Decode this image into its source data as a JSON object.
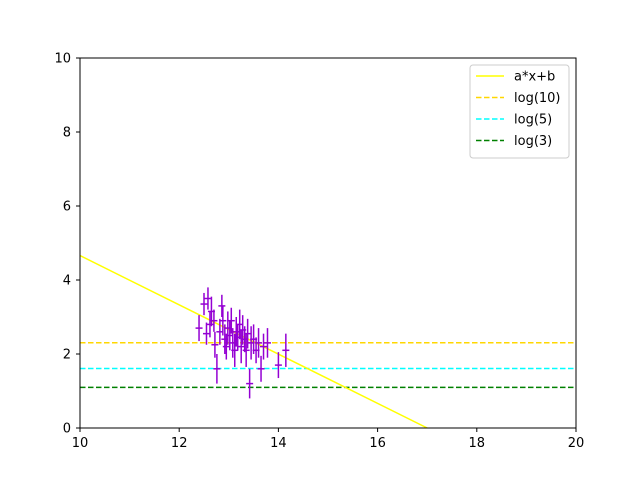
{
  "chart_data": {
    "type": "scatter",
    "title": "",
    "xlabel": "",
    "ylabel": "",
    "xlim": [
      10,
      20
    ],
    "ylim": [
      0,
      10
    ],
    "xticks": [
      "10",
      "12",
      "14",
      "16",
      "18",
      "20"
    ],
    "yticks": [
      "0",
      "2",
      "4",
      "6",
      "8",
      "10"
    ],
    "grid": false,
    "legend_position": "top-right",
    "fit_line": {
      "name": "a*x+b",
      "color": "#ffff00",
      "style": "solid",
      "x": [
        10,
        17
      ],
      "y": [
        4.66,
        0
      ]
    },
    "reference_lines": [
      {
        "name": "log(10)",
        "value": 2.303,
        "color": "#ffd700",
        "style": "dashed"
      },
      {
        "name": "log(5)",
        "value": 1.609,
        "color": "#00ffff",
        "style": "dashed"
      },
      {
        "name": "log(3)",
        "value": 1.099,
        "color": "#008000",
        "style": "dashed"
      }
    ],
    "scatter": {
      "color": "#9400d3",
      "points": [
        {
          "x": 12.4,
          "y": 2.7,
          "err": 0.35
        },
        {
          "x": 12.5,
          "y": 3.35,
          "err": 0.3
        },
        {
          "x": 12.55,
          "y": 2.55,
          "err": 0.3
        },
        {
          "x": 12.58,
          "y": 3.5,
          "err": 0.3
        },
        {
          "x": 12.62,
          "y": 2.8,
          "err": 0.35
        },
        {
          "x": 12.65,
          "y": 3.15,
          "err": 0.4
        },
        {
          "x": 12.7,
          "y": 2.9,
          "err": 0.3
        },
        {
          "x": 12.72,
          "y": 2.25,
          "err": 0.35
        },
        {
          "x": 12.76,
          "y": 1.6,
          "err": 0.4
        },
        {
          "x": 12.82,
          "y": 2.6,
          "err": 0.35
        },
        {
          "x": 12.86,
          "y": 3.3,
          "err": 0.3
        },
        {
          "x": 12.88,
          "y": 2.9,
          "err": 0.4
        },
        {
          "x": 12.92,
          "y": 2.4,
          "err": 0.4
        },
        {
          "x": 12.95,
          "y": 2.2,
          "err": 0.35
        },
        {
          "x": 12.98,
          "y": 2.7,
          "err": 0.45
        },
        {
          "x": 13.02,
          "y": 2.5,
          "err": 0.4
        },
        {
          "x": 13.05,
          "y": 2.9,
          "err": 0.35
        },
        {
          "x": 13.08,
          "y": 2.3,
          "err": 0.4
        },
        {
          "x": 13.12,
          "y": 2.1,
          "err": 0.45
        },
        {
          "x": 13.15,
          "y": 2.6,
          "err": 0.4
        },
        {
          "x": 13.18,
          "y": 2.45,
          "err": 0.35
        },
        {
          "x": 13.22,
          "y": 2.8,
          "err": 0.4
        },
        {
          "x": 13.25,
          "y": 2.2,
          "err": 0.45
        },
        {
          "x": 13.28,
          "y": 2.65,
          "err": 0.4
        },
        {
          "x": 13.32,
          "y": 2.4,
          "err": 0.35
        },
        {
          "x": 13.35,
          "y": 2.1,
          "err": 0.45
        },
        {
          "x": 13.38,
          "y": 2.55,
          "err": 0.4
        },
        {
          "x": 13.42,
          "y": 1.2,
          "err": 0.4
        },
        {
          "x": 13.45,
          "y": 2.3,
          "err": 0.45
        },
        {
          "x": 13.5,
          "y": 2.4,
          "err": 0.4
        },
        {
          "x": 13.55,
          "y": 2.1,
          "err": 0.35
        },
        {
          "x": 13.6,
          "y": 2.3,
          "err": 0.4
        },
        {
          "x": 13.65,
          "y": 1.6,
          "err": 0.35
        },
        {
          "x": 13.7,
          "y": 2.2,
          "err": 0.35
        },
        {
          "x": 13.78,
          "y": 2.3,
          "err": 0.4
        },
        {
          "x": 14.0,
          "y": 1.7,
          "err": 0.35
        },
        {
          "x": 14.15,
          "y": 2.1,
          "err": 0.45
        }
      ]
    }
  }
}
